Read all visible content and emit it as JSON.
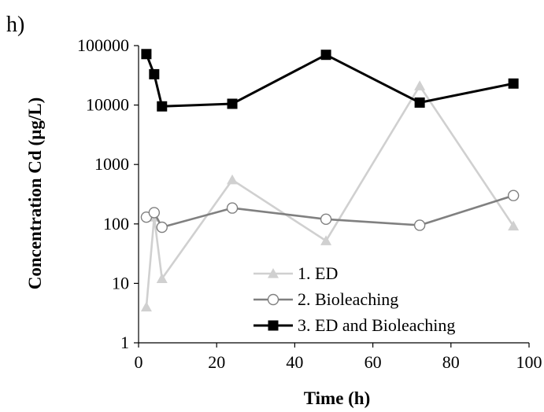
{
  "chart_data": {
    "type": "line",
    "panel_label": "h)",
    "xlabel": "Time (h)",
    "ylabel": "Concentration Cd  (µg/L)",
    "x_scale": "linear",
    "y_scale": "log",
    "xlim": [
      0,
      100
    ],
    "ylim": [
      1,
      100000
    ],
    "x_ticks": [
      0,
      20,
      40,
      60,
      80,
      100
    ],
    "x_tick_labels": [
      "0",
      "20",
      "40",
      "60",
      "80",
      "100"
    ],
    "y_ticks": [
      1,
      10,
      100,
      1000,
      10000,
      100000
    ],
    "y_tick_labels": [
      "1",
      "10",
      "100",
      "1000",
      "10000",
      "100000"
    ],
    "grid": false,
    "legend_position": "bottom-right",
    "series": [
      {
        "name": "1. ED",
        "marker": "triangle",
        "color": "#d0d0d0",
        "points": [
          [
            2,
            4
          ],
          [
            4,
            130
          ],
          [
            6,
            12
          ],
          [
            24,
            550
          ],
          [
            48,
            52
          ],
          [
            72,
            21000
          ],
          [
            96,
            92
          ]
        ]
      },
      {
        "name": "2. Bioleaching",
        "marker": "open-circle",
        "color": "#808080",
        "points": [
          [
            2,
            130
          ],
          [
            4,
            155
          ],
          [
            6,
            88
          ],
          [
            24,
            185
          ],
          [
            48,
            120
          ],
          [
            72,
            95
          ],
          [
            96,
            300
          ]
        ]
      },
      {
        "name": "3. ED and Bioleaching",
        "marker": "filled-square",
        "color": "#000000",
        "points": [
          [
            2,
            72000
          ],
          [
            4,
            33000
          ],
          [
            6,
            9500
          ],
          [
            24,
            10500
          ],
          [
            48,
            70000
          ],
          [
            72,
            11000
          ],
          [
            96,
            23000
          ]
        ]
      }
    ]
  }
}
